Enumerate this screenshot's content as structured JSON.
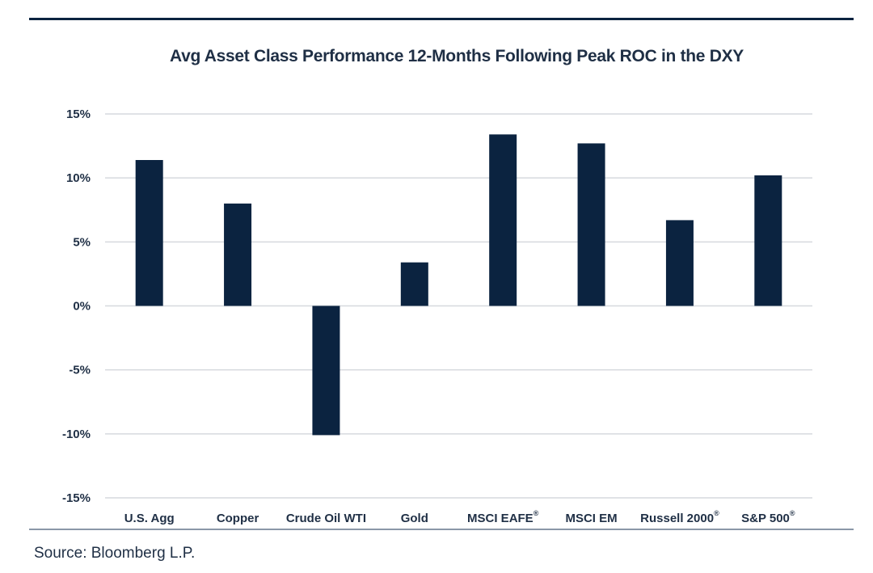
{
  "chart_data": {
    "type": "bar",
    "title": "Avg Asset Class Performance 12-Months Following Peak ROC in the DXY",
    "categories": [
      "U.S. Agg",
      "Copper",
      "Crude Oil WTI",
      "Gold",
      "MSCI EAFE®",
      "MSCI EM",
      "Russell 2000®",
      "S&P 500®"
    ],
    "values": [
      11.4,
      8.0,
      -10.1,
      3.4,
      13.4,
      12.7,
      6.7,
      10.2
    ],
    "yticks": [
      "15%",
      "10%",
      "5%",
      "0%",
      "-5%",
      "-10%",
      "-15%"
    ],
    "ylim": [
      -15,
      15
    ],
    "grid": true,
    "colors": {
      "bar": "#0b2340",
      "grid": "#d6d9de",
      "text": "#1f2f45"
    }
  },
  "source": "Source:  Bloomberg L.P."
}
